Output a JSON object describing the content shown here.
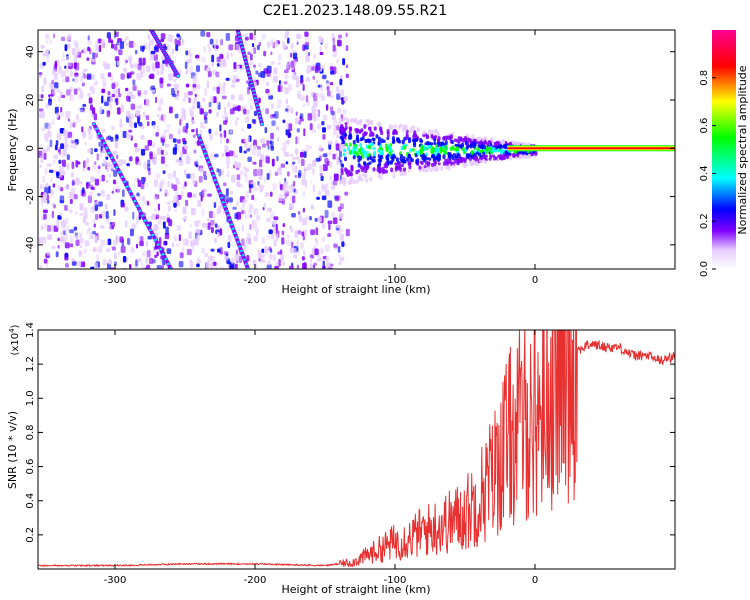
{
  "title": "C2E1.2023.148.09.55.R21",
  "chart_data": [
    {
      "type": "heatmap",
      "xlabel": "Height of straight line (km)",
      "ylabel": "Frequency (Hz)",
      "xlim": [
        -355,
        100
      ],
      "ylim": [
        -50,
        49
      ],
      "xticks": [
        -300,
        -200,
        -100,
        0
      ],
      "yticks": [
        -40,
        -20,
        0,
        20,
        40
      ],
      "colorbar": {
        "label": "Normalized spectral amplitude",
        "range": [
          0.0,
          1.0
        ],
        "ticks": [
          0.0,
          0.2,
          0.4,
          0.6,
          0.8
        ],
        "colors": [
          "#ffffff",
          "#e6ccff",
          "#8000ff",
          "#0000ff",
          "#00ffff",
          "#00ff00",
          "#ffff00",
          "#ff0000",
          "#ff0090"
        ]
      },
      "features": {
        "noise_region_end_km": -140,
        "spectral_line_start_km": 0,
        "spectral_line_freq_hz": 0,
        "diagonal_tracks": [
          {
            "x": [
              -315,
              -260
            ],
            "y": [
              10,
              -50
            ]
          },
          {
            "x": [
              -240,
              -205
            ],
            "y": [
              5,
              -50
            ]
          },
          {
            "x": [
              -280,
              -255
            ],
            "y": [
              55,
              30
            ]
          },
          {
            "x": [
              -215,
              -195
            ],
            "y": [
              55,
              10
            ]
          }
        ]
      }
    },
    {
      "type": "line",
      "xlabel": "Height of straight line (km)",
      "ylabel": "SNR (10 * v/v)",
      "multiplier_label": "(x10",
      "multiplier_exp": "4",
      "multiplier_close": ")",
      "xlim": [
        -355,
        100
      ],
      "ylim": [
        0,
        1.4
      ],
      "xticks": [
        -300,
        -200,
        -100,
        0
      ],
      "yticks": [
        0.2,
        0.4,
        0.6,
        0.8,
        1.0,
        1.2,
        1.4
      ],
      "series": [
        {
          "name": "SNR",
          "color": "#e83030",
          "x": [
            -355,
            -300,
            -250,
            -200,
            -150,
            -130,
            -120,
            -110,
            -100,
            -90,
            -80,
            -70,
            -60,
            -50,
            -40,
            -30,
            -20,
            -10,
            0,
            10,
            20,
            30,
            40,
            50,
            60,
            70,
            80,
            90,
            100
          ],
          "y": [
            0.02,
            0.02,
            0.03,
            0.03,
            0.02,
            0.04,
            0.08,
            0.12,
            0.16,
            0.18,
            0.22,
            0.25,
            0.28,
            0.32,
            0.42,
            0.55,
            0.75,
            0.85,
            0.9,
            1.05,
            1.2,
            1.28,
            1.32,
            1.3,
            1.3,
            1.25,
            1.25,
            1.22,
            1.25
          ]
        }
      ]
    }
  ]
}
